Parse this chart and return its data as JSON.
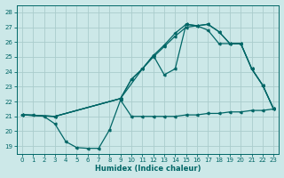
{
  "xlabel": "Humidex (Indice chaleur)",
  "ylabel": "",
  "bg_color": "#cce8e8",
  "grid_color": "#aacccc",
  "line_color": "#006666",
  "xlim": [
    -0.5,
    23.5
  ],
  "ylim": [
    18.5,
    28.5
  ],
  "yticks": [
    19,
    20,
    21,
    22,
    23,
    24,
    25,
    26,
    27,
    28
  ],
  "xticks": [
    0,
    1,
    2,
    3,
    4,
    5,
    6,
    7,
    8,
    9,
    10,
    11,
    12,
    13,
    14,
    15,
    16,
    17,
    18,
    19,
    20,
    21,
    22,
    23
  ],
  "line_wavy_x": [
    0,
    1,
    2,
    3,
    4,
    5,
    6,
    7,
    8,
    9,
    10,
    11,
    12,
    13,
    14,
    15,
    16,
    17,
    18,
    19,
    20,
    21,
    22,
    23
  ],
  "line_wavy_y": [
    21.1,
    21.1,
    21.0,
    20.5,
    19.3,
    18.9,
    18.85,
    18.85,
    20.1,
    22.1,
    21.0,
    21.0,
    21.0,
    21.0,
    21.0,
    21.1,
    21.1,
    21.2,
    21.2,
    21.3,
    21.3,
    21.4,
    21.4,
    21.5
  ],
  "line_diag1_x": [
    0,
    3,
    9,
    11,
    12,
    13,
    14,
    15,
    16,
    17,
    18,
    19,
    20,
    21,
    22,
    23
  ],
  "line_diag1_y": [
    21.1,
    21.0,
    22.2,
    24.2,
    25.1,
    23.8,
    24.2,
    27.2,
    27.1,
    27.2,
    26.7,
    25.9,
    25.9,
    24.2,
    23.1,
    21.5
  ],
  "line_diag2_x": [
    0,
    3,
    9,
    10,
    11,
    12,
    13,
    14,
    15,
    16,
    17,
    18,
    19,
    20,
    21,
    22,
    23
  ],
  "line_diag2_y": [
    21.1,
    21.0,
    22.2,
    23.5,
    24.2,
    25.1,
    25.8,
    26.6,
    27.2,
    27.1,
    27.2,
    26.7,
    25.9,
    25.9,
    24.2,
    23.1,
    21.5
  ],
  "line_flat_x": [
    0,
    3,
    9,
    10,
    11,
    12,
    13,
    14,
    15,
    16,
    17,
    18,
    19,
    20,
    21,
    22,
    23
  ],
  "line_flat_y": [
    21.1,
    21.0,
    22.2,
    23.5,
    24.2,
    25.0,
    25.7,
    26.4,
    27.0,
    27.1,
    26.8,
    25.9,
    25.9,
    25.9,
    24.2,
    23.1,
    21.5
  ]
}
